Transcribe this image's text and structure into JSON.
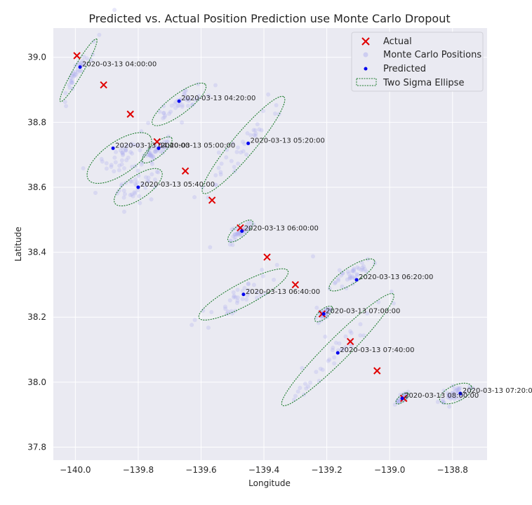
{
  "chart_data": {
    "type": "scatter",
    "title": "Predicted vs. Actual Position Prediction use Monte Carlo Dropout",
    "xlabel": "Longitude",
    "ylabel": "Latitude",
    "xlim": [
      -140.07,
      -138.69
    ],
    "ylim": [
      37.76,
      39.09
    ],
    "xticks": [
      -140.0,
      -139.8,
      -139.6,
      -139.4,
      -139.2,
      -139.0,
      -138.8
    ],
    "xtick_labels": [
      "−140.0",
      "−139.8",
      "−139.6",
      "−139.4",
      "−139.2",
      "−139.0",
      "−138.8"
    ],
    "yticks": [
      37.8,
      38.0,
      38.2,
      38.4,
      38.6,
      38.8,
      39.0
    ],
    "ytick_labels": [
      "37.8",
      "38.0",
      "38.2",
      "38.4",
      "38.6",
      "38.8",
      "39.0"
    ],
    "grid": true,
    "legend": {
      "placement": "top-right",
      "entries": [
        "Actual",
        "Monte Carlo Positions",
        "Predicted",
        "Two Sigma Ellipse"
      ]
    },
    "colors": {
      "background": "#eaeaf2",
      "grid": "#ffffff",
      "actual": "#e00000",
      "monte_carlo": "#b0b0f0",
      "predicted": "#0000ee",
      "ellipse": "#1a7a2a"
    },
    "actual": [
      {
        "x": -139.995,
        "y": 39.005
      },
      {
        "x": -139.91,
        "y": 38.915
      },
      {
        "x": -139.825,
        "y": 38.825
      },
      {
        "x": -139.74,
        "y": 38.74
      },
      {
        "x": -139.65,
        "y": 38.65
      },
      {
        "x": -139.565,
        "y": 38.56
      },
      {
        "x": -139.475,
        "y": 38.475
      },
      {
        "x": -139.39,
        "y": 38.385
      },
      {
        "x": -139.3,
        "y": 38.3
      },
      {
        "x": -139.215,
        "y": 38.21
      },
      {
        "x": -139.125,
        "y": 38.125
      },
      {
        "x": -139.04,
        "y": 38.035
      },
      {
        "x": -138.955,
        "y": 37.95
      }
    ],
    "predicted": [
      {
        "x": -139.985,
        "y": 38.97,
        "label": "2020-03-13 04:00:00"
      },
      {
        "x": -139.67,
        "y": 38.865,
        "label": "2020-03-13 04:20:00"
      },
      {
        "x": -139.88,
        "y": 38.72,
        "label": "2020-03-13 04:40:00"
      },
      {
        "x": -139.735,
        "y": 38.72,
        "label": "2020-03-13 05:00:00"
      },
      {
        "x": -139.45,
        "y": 38.735,
        "label": "2020-03-13 05:20:00"
      },
      {
        "x": -139.8,
        "y": 38.6,
        "label": "2020-03-13 05:40:00"
      },
      {
        "x": -139.47,
        "y": 38.465,
        "label": "2020-03-13 06:00:00"
      },
      {
        "x": -139.105,
        "y": 38.315,
        "label": "2020-03-13 06:20:00"
      },
      {
        "x": -139.465,
        "y": 38.27,
        "label": "2020-03-13 06:40:00"
      },
      {
        "x": -139.21,
        "y": 38.21,
        "label": "2020-03-13 07:00:00"
      },
      {
        "x": -138.775,
        "y": 37.965,
        "label": "2020-03-13 07:20:00"
      },
      {
        "x": -139.165,
        "y": 38.09,
        "label": "2020-03-13 07:40:00"
      },
      {
        "x": -138.96,
        "y": 37.95,
        "label": "2020-03-13 08:00:00"
      }
    ],
    "two_sigma_ellipses": [
      {
        "cx": -139.99,
        "cy": 38.96,
        "major": 0.115,
        "minor": 0.015,
        "angle": 60
      },
      {
        "cx": -139.67,
        "cy": 38.855,
        "major": 0.105,
        "minor": 0.03,
        "angle": 37
      },
      {
        "cx": -139.86,
        "cy": 38.69,
        "major": 0.12,
        "minor": 0.05,
        "angle": 35
      },
      {
        "cx": -139.74,
        "cy": 38.715,
        "major": 0.06,
        "minor": 0.02,
        "angle": 40
      },
      {
        "cx": -139.465,
        "cy": 38.73,
        "major": 0.2,
        "minor": 0.035,
        "angle": 50
      },
      {
        "cx": -139.8,
        "cy": 38.6,
        "major": 0.09,
        "minor": 0.035,
        "angle": 35
      },
      {
        "cx": -139.475,
        "cy": 38.465,
        "major": 0.05,
        "minor": 0.018,
        "angle": 40
      },
      {
        "cx": -139.12,
        "cy": 38.33,
        "major": 0.085,
        "minor": 0.025,
        "angle": 33
      },
      {
        "cx": -139.465,
        "cy": 38.27,
        "major": 0.16,
        "minor": 0.035,
        "angle": 28
      },
      {
        "cx": -139.21,
        "cy": 38.21,
        "major": 0.035,
        "minor": 0.014,
        "angle": 40
      },
      {
        "cx": -138.79,
        "cy": 37.965,
        "major": 0.055,
        "minor": 0.025,
        "angle": 25
      },
      {
        "cx": -139.165,
        "cy": 38.1,
        "major": 0.25,
        "minor": 0.035,
        "angle": 45
      },
      {
        "cx": -138.96,
        "cy": 37.95,
        "major": 0.025,
        "minor": 0.01,
        "angle": 40
      }
    ],
    "monte_carlo_points_per_ellipse": 40
  }
}
